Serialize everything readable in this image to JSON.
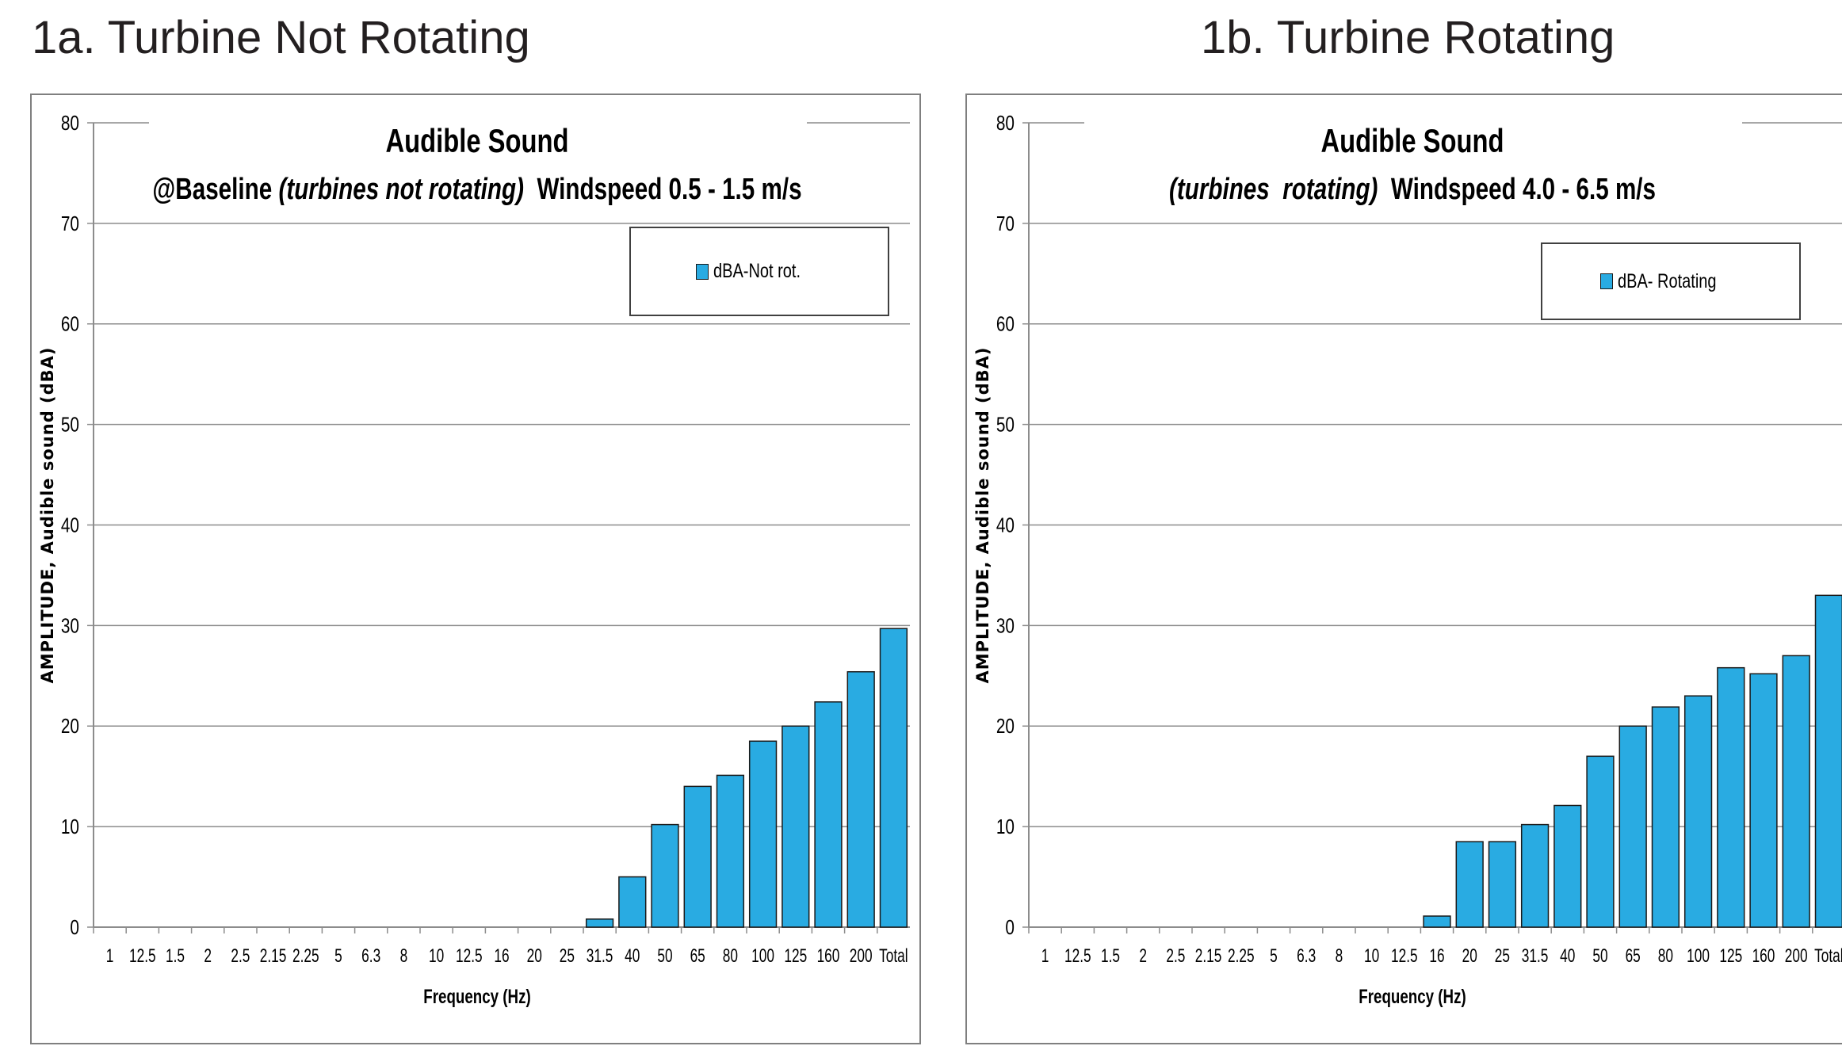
{
  "panels": [
    {
      "heading": "1a. Turbine Not Rotating",
      "chart_title": "Audible Sound",
      "subtitle_prefix": "@Baseline ",
      "subtitle_italic": "(turbines not rotating)",
      "subtitle_suffix": "  Windspeed 0.5 - 1.5 m/s",
      "legend": "dBA-Not rot.",
      "ylabel": "AMPLITUDE, Audible sound (dBA)",
      "xlabel": "Frequency (Hz)"
    },
    {
      "heading": "1b. Turbine Rotating",
      "chart_title": "Audible Sound",
      "subtitle_prefix": "",
      "subtitle_italic": "(turbines  rotating)",
      "subtitle_suffix": "  Windspeed 4.0 - 6.5 m/s",
      "legend": "dBA- Rotating",
      "ylabel": "AMPLITUDE, Audible sound (dBA)",
      "xlabel": "Frequency (Hz)"
    }
  ],
  "colors": {
    "bar": "#29abe2",
    "bar_border": "#1a1a1a",
    "grid": "#8c8c8c"
  },
  "chart_data": [
    {
      "type": "bar",
      "title": "Audible Sound",
      "subtitle": "@Baseline (turbines not rotating)  Windspeed 0.5 - 1.5 m/s",
      "xlabel": "Frequency (Hz)",
      "ylabel": "AMPLITUDE, Audible sound (dBA)",
      "ylim": [
        0,
        80
      ],
      "yticks": [
        0,
        10,
        20,
        30,
        40,
        50,
        60,
        70,
        80
      ],
      "grid": true,
      "legend_position": "top-right",
      "categories": [
        "1",
        "12.5",
        "1.5",
        "2",
        "2.5",
        "2.15",
        "2.25",
        "5",
        "6.3",
        "8",
        "10",
        "12.5",
        "16",
        "20",
        "25",
        "31.5",
        "40",
        "50",
        "65",
        "80",
        "100",
        "125",
        "160",
        "200",
        "Total"
      ],
      "series": [
        {
          "name": "dBA-Not rot.",
          "values": [
            0,
            0,
            0,
            0,
            0,
            0,
            0,
            0,
            0,
            0,
            0,
            0,
            0,
            0,
            0,
            0.8,
            5,
            10.2,
            14,
            15.1,
            18.5,
            20,
            22.4,
            25.4,
            29.7
          ]
        }
      ]
    },
    {
      "type": "bar",
      "title": "Audible Sound",
      "subtitle": "(turbines  rotating)  Windspeed 4.0 - 6.5 m/s",
      "xlabel": "Frequency (Hz)",
      "ylabel": "AMPLITUDE, Audible sound (dBA)",
      "ylim": [
        0,
        80
      ],
      "yticks": [
        0,
        10,
        20,
        30,
        40,
        50,
        60,
        70,
        80
      ],
      "grid": true,
      "legend_position": "top-right",
      "categories": [
        "1",
        "12.5",
        "1.5",
        "2",
        "2.5",
        "2.15",
        "2.25",
        "5",
        "6.3",
        "8",
        "10",
        "12.5",
        "16",
        "20",
        "25",
        "31.5",
        "40",
        "50",
        "65",
        "80",
        "100",
        "125",
        "160",
        "200",
        "Total"
      ],
      "series": [
        {
          "name": "dBA- Rotating",
          "values": [
            0,
            0,
            0,
            0,
            0,
            0,
            0,
            0,
            0,
            0,
            0,
            0,
            1.1,
            8.5,
            8.5,
            10.2,
            12.1,
            17,
            20,
            21.9,
            23,
            25.8,
            25.2,
            27,
            33
          ]
        }
      ]
    }
  ]
}
